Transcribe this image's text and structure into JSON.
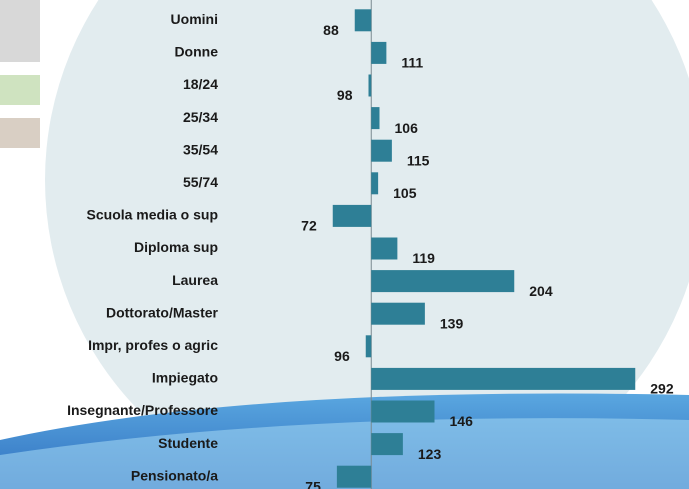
{
  "chart_data": {
    "type": "bar",
    "orientation": "horizontal",
    "categories": [
      "Uomini",
      "Donne",
      "18/24",
      "25/34",
      "35/54",
      "55/74",
      "Scuola media o sup",
      "Diploma sup",
      "Laurea",
      "Dottorato/Master",
      "Impr, profes o agric",
      "Impiegato",
      "Insegnante/Professore",
      "Studente",
      "Pensionato/a"
    ],
    "values": [
      88,
      111,
      98,
      106,
      115,
      105,
      72,
      119,
      204,
      139,
      96,
      292,
      146,
      123,
      75
    ],
    "color": "#2e7f96",
    "baseline": 100,
    "xlim": [
      -170,
      310
    ]
  }
}
